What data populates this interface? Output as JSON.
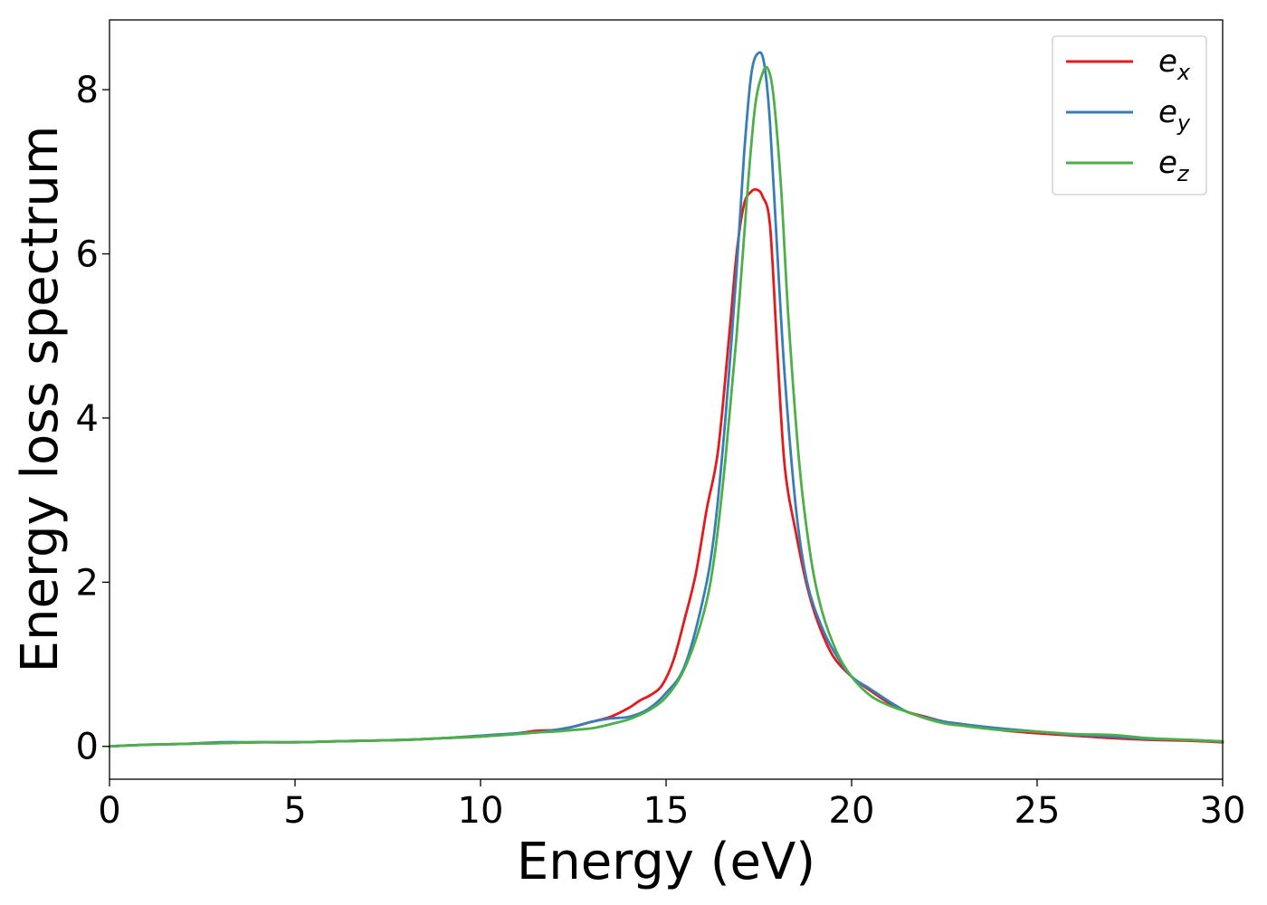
{
  "chart_data": {
    "type": "line",
    "title": "",
    "xlabel": "Energy (eV)",
    "ylabel": "Energy loss spectrum",
    "xlim": [
      0,
      30
    ],
    "ylim": [
      -0.4,
      8.85
    ],
    "xticks": [
      0,
      5,
      10,
      15,
      20,
      25,
      30
    ],
    "yticks": [
      0,
      2,
      4,
      6,
      8
    ],
    "grid": false,
    "legend_position": "top-right",
    "series": [
      {
        "name": "e_x",
        "label_base": "e",
        "label_sub": "x",
        "color": "#e41a1c",
        "x": [
          0,
          1,
          2,
          3,
          4,
          5,
          6,
          7,
          8,
          9,
          10,
          11,
          11.5,
          12,
          12.5,
          13,
          13.5,
          14,
          14.3,
          14.6,
          14.9,
          15.2,
          15.5,
          15.8,
          16.1,
          16.4,
          16.7,
          16.9,
          17.1,
          17.3,
          17.45,
          17.6,
          17.8,
          18.0,
          18.2,
          18.5,
          18.8,
          19.1,
          19.5,
          20,
          20.5,
          21,
          21.5,
          22,
          22.5,
          23,
          24,
          25,
          26,
          27,
          28,
          29,
          30
        ],
        "y": [
          0,
          0.02,
          0.03,
          0.04,
          0.05,
          0.05,
          0.06,
          0.07,
          0.08,
          0.1,
          0.12,
          0.16,
          0.19,
          0.2,
          0.24,
          0.3,
          0.36,
          0.47,
          0.56,
          0.63,
          0.75,
          1.05,
          1.55,
          2.1,
          2.9,
          3.6,
          5.0,
          6.0,
          6.6,
          6.76,
          6.78,
          6.7,
          6.35,
          4.8,
          3.4,
          2.6,
          1.95,
          1.5,
          1.1,
          0.85,
          0.68,
          0.53,
          0.42,
          0.36,
          0.3,
          0.27,
          0.2,
          0.16,
          0.13,
          0.1,
          0.08,
          0.07,
          0.05
        ]
      },
      {
        "name": "e_y",
        "label_base": "e",
        "label_sub": "y",
        "color": "#377eb8",
        "x": [
          0,
          1,
          2,
          3,
          4,
          5,
          6,
          7,
          8,
          9,
          10,
          11,
          11.5,
          12,
          12.5,
          13,
          13.5,
          14,
          14.5,
          15,
          15.5,
          16,
          16.3,
          16.6,
          16.9,
          17.1,
          17.3,
          17.5,
          17.65,
          17.8,
          18.0,
          18.2,
          18.5,
          18.8,
          19.2,
          19.6,
          20,
          20.5,
          21,
          21.5,
          22,
          22.5,
          23,
          24,
          25,
          26,
          27,
          28,
          29,
          30
        ],
        "y": [
          0,
          0.02,
          0.03,
          0.05,
          0.05,
          0.05,
          0.06,
          0.07,
          0.08,
          0.1,
          0.13,
          0.16,
          0.17,
          0.2,
          0.24,
          0.3,
          0.34,
          0.36,
          0.45,
          0.65,
          0.98,
          1.8,
          2.6,
          4.0,
          5.8,
          7.2,
          8.2,
          8.45,
          8.3,
          7.6,
          6.0,
          4.5,
          2.9,
          2.0,
          1.45,
          1.1,
          0.85,
          0.7,
          0.55,
          0.42,
          0.35,
          0.3,
          0.27,
          0.22,
          0.18,
          0.14,
          0.12,
          0.09,
          0.08,
          0.06
        ]
      },
      {
        "name": "e_z",
        "label_base": "e",
        "label_sub": "z",
        "color": "#4daf4a",
        "x": [
          0,
          1,
          2,
          3,
          4,
          5,
          6,
          7,
          8,
          9,
          10,
          11,
          11.5,
          12,
          12.5,
          13,
          13.5,
          14,
          14.5,
          15,
          15.5,
          16,
          16.3,
          16.6,
          16.9,
          17.2,
          17.4,
          17.6,
          17.75,
          17.9,
          18.1,
          18.3,
          18.6,
          18.9,
          19.2,
          19.6,
          20,
          20.5,
          21,
          21.5,
          22,
          22.5,
          23,
          24,
          25,
          26,
          27,
          28,
          29,
          30
        ],
        "y": [
          0,
          0.02,
          0.03,
          0.04,
          0.05,
          0.05,
          0.06,
          0.07,
          0.08,
          0.1,
          0.12,
          0.15,
          0.17,
          0.18,
          0.2,
          0.22,
          0.27,
          0.33,
          0.43,
          0.6,
          0.95,
          1.6,
          2.3,
          3.5,
          5.0,
          6.8,
          7.8,
          8.2,
          8.25,
          7.9,
          6.8,
          5.2,
          3.4,
          2.3,
          1.65,
          1.15,
          0.85,
          0.62,
          0.5,
          0.42,
          0.34,
          0.28,
          0.25,
          0.2,
          0.18,
          0.15,
          0.14,
          0.1,
          0.08,
          0.06
        ]
      }
    ]
  }
}
